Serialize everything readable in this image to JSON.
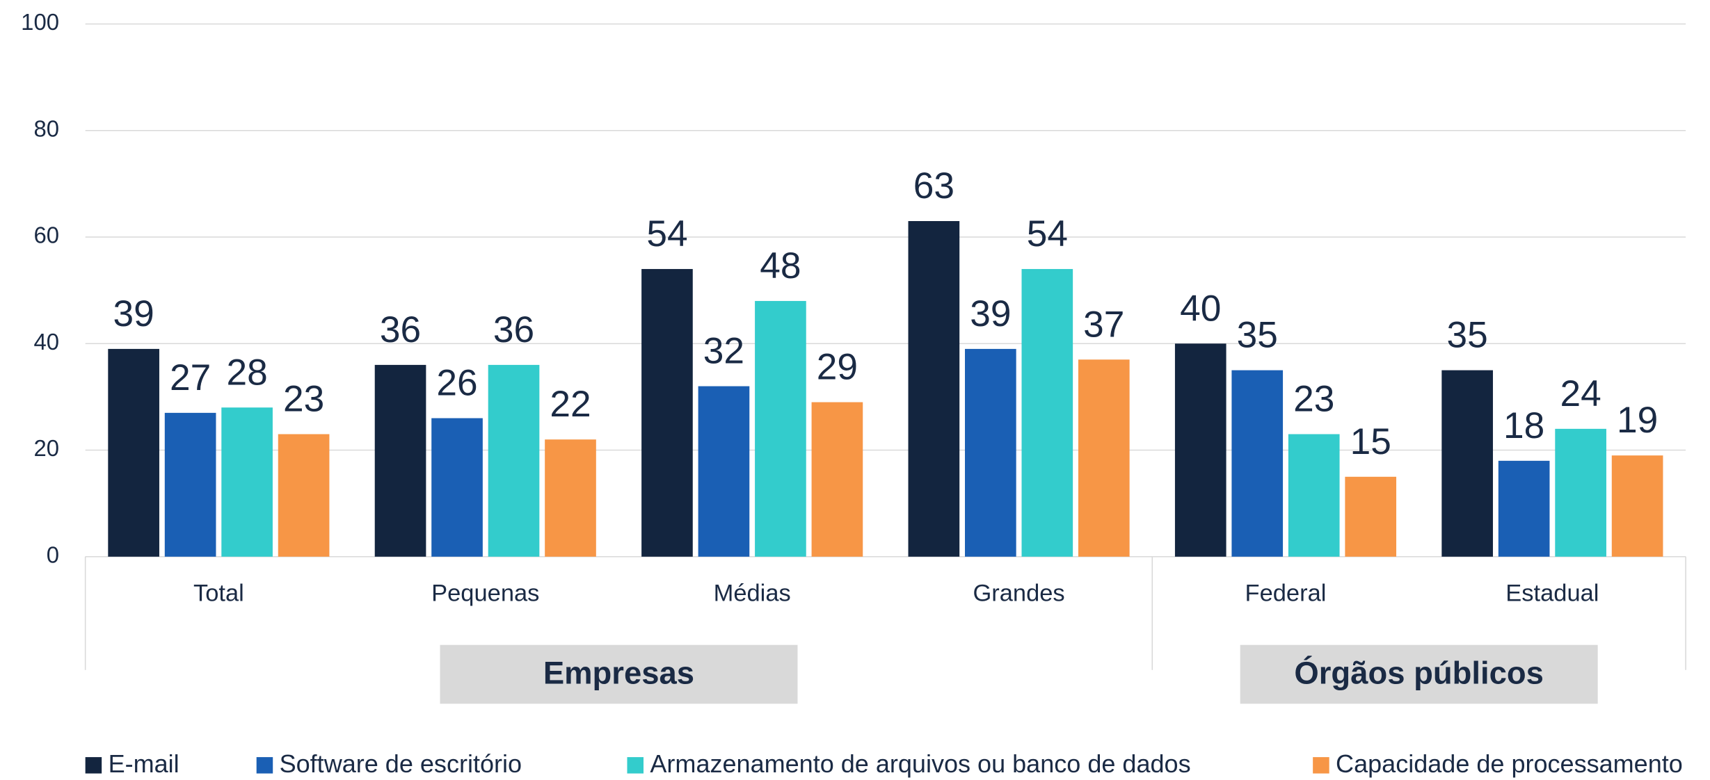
{
  "chart_data": {
    "type": "bar",
    "categories": [
      "Total",
      "Pequenas",
      "Médias",
      "Grandes",
      "Federal",
      "Estadual"
    ],
    "group_labels": [
      "Empresas",
      "Órgãos públicos"
    ],
    "series": [
      {
        "name": "E-mail",
        "color": "#13253f",
        "values": [
          39,
          36,
          54,
          63,
          40,
          35
        ]
      },
      {
        "name": "Software de escritório",
        "color": "#1a5fb4",
        "values": [
          27,
          26,
          32,
          39,
          35,
          18
        ]
      },
      {
        "name": "Armazenamento de arquivos ou banco de dados",
        "color": "#33cccc",
        "values": [
          28,
          36,
          48,
          54,
          23,
          24
        ]
      },
      {
        "name": "Capacidade de processamento",
        "color": "#f79646",
        "values": [
          23,
          22,
          29,
          37,
          15,
          19
        ]
      }
    ],
    "ylim": [
      0,
      100
    ],
    "yticks": [
      0,
      20,
      40,
      60,
      80,
      100
    ],
    "grid": true,
    "legend": "bottom"
  }
}
